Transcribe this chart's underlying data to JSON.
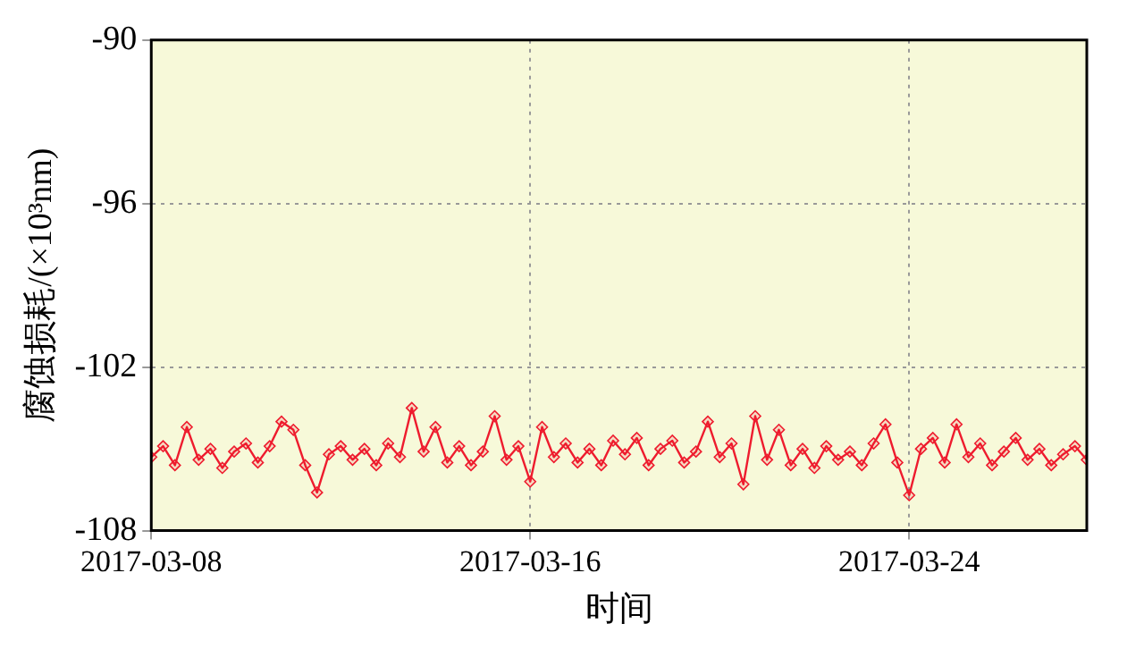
{
  "chart_data": {
    "type": "line",
    "xlabel": "时间",
    "ylabel": "腐蚀损耗/(×10³nm)",
    "x": [
      "2017-03-08T00:00",
      "2017-03-08T06:00",
      "2017-03-08T12:00",
      "2017-03-08T18:00",
      "2017-03-09T00:00",
      "2017-03-09T06:00",
      "2017-03-09T12:00",
      "2017-03-09T18:00",
      "2017-03-10T00:00",
      "2017-03-10T06:00",
      "2017-03-10T12:00",
      "2017-03-10T18:00",
      "2017-03-11T00:00",
      "2017-03-11T06:00",
      "2017-03-11T12:00",
      "2017-03-11T18:00",
      "2017-03-12T00:00",
      "2017-03-12T06:00",
      "2017-03-12T12:00",
      "2017-03-12T18:00",
      "2017-03-13T00:00",
      "2017-03-13T06:00",
      "2017-03-13T12:00",
      "2017-03-13T18:00",
      "2017-03-14T00:00",
      "2017-03-14T06:00",
      "2017-03-14T12:00",
      "2017-03-14T18:00",
      "2017-03-15T00:00",
      "2017-03-15T06:00",
      "2017-03-15T12:00",
      "2017-03-15T18:00",
      "2017-03-16T00:00",
      "2017-03-16T06:00",
      "2017-03-16T12:00",
      "2017-03-16T18:00",
      "2017-03-17T00:00",
      "2017-03-17T06:00",
      "2017-03-17T12:00",
      "2017-03-17T18:00",
      "2017-03-18T00:00",
      "2017-03-18T06:00",
      "2017-03-18T12:00",
      "2017-03-18T18:00",
      "2017-03-19T00:00",
      "2017-03-19T06:00",
      "2017-03-19T12:00",
      "2017-03-19T18:00",
      "2017-03-20T00:00",
      "2017-03-20T06:00",
      "2017-03-20T12:00",
      "2017-03-20T18:00",
      "2017-03-21T00:00",
      "2017-03-21T06:00",
      "2017-03-21T12:00",
      "2017-03-21T18:00",
      "2017-03-22T00:00",
      "2017-03-22T06:00",
      "2017-03-22T12:00",
      "2017-03-22T18:00",
      "2017-03-23T00:00",
      "2017-03-23T06:00",
      "2017-03-23T12:00",
      "2017-03-23T18:00",
      "2017-03-24T00:00",
      "2017-03-24T06:00",
      "2017-03-24T12:00",
      "2017-03-24T18:00",
      "2017-03-25T00:00",
      "2017-03-25T06:00",
      "2017-03-25T12:00",
      "2017-03-25T18:00",
      "2017-03-26T00:00",
      "2017-03-26T06:00",
      "2017-03-26T12:00",
      "2017-03-26T18:00",
      "2017-03-27T00:00",
      "2017-03-27T06:00",
      "2017-03-27T12:00",
      "2017-03-27T18:00"
    ],
    "series": [
      {
        "color": "#ee1c2e",
        "values": [
          -105.3,
          -104.9,
          -105.6,
          -104.2,
          -105.4,
          -105.0,
          -105.7,
          -105.1,
          -104.8,
          -105.5,
          -104.9,
          -104.0,
          -104.3,
          -105.6,
          -106.6,
          -105.2,
          -104.9,
          -105.4,
          -105.0,
          -105.6,
          -104.8,
          -105.3,
          -103.5,
          -105.1,
          -104.2,
          -105.5,
          -104.9,
          -105.6,
          -105.1,
          -103.8,
          -105.4,
          -104.9,
          -106.2,
          -104.2,
          -105.3,
          -104.8,
          -105.5,
          -105.0,
          -105.6,
          -104.7,
          -105.2,
          -104.6,
          -105.6,
          -105.0,
          -104.7,
          -105.5,
          -105.1,
          -104.0,
          -105.3,
          -104.8,
          -106.3,
          -103.8,
          -105.4,
          -104.3,
          -105.6,
          -105.0,
          -105.7,
          -104.9,
          -105.4,
          -105.1,
          -105.6,
          -104.8,
          -104.1,
          -105.5,
          -106.7,
          -105.0,
          -104.6,
          -105.5,
          -104.1,
          -105.3,
          -104.8,
          -105.6,
          -105.1,
          -104.6,
          -105.4,
          -105.0,
          -105.6,
          -105.2,
          -104.9,
          -105.4
        ]
      }
    ],
    "xlim": [
      "2017-03-08T00:00",
      "2017-03-27T18:00"
    ],
    "xticks": [
      "2017-03-08",
      "2017-03-16",
      "2017-03-24"
    ],
    "ylim": [
      -108,
      -90
    ],
    "yticks": [
      -108,
      -102,
      -96,
      -90
    ],
    "grid": true,
    "legend": false,
    "marker": "diamond",
    "line_style": "solid"
  }
}
